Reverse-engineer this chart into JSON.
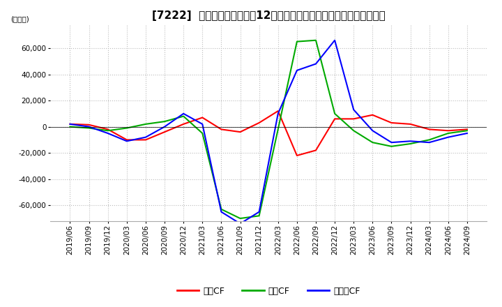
{
  "title": "[7222]  キャッシュフローの12か月移動合計の対前年同期増減額の推移",
  "ylabel": "(百万円)",
  "ylim": [
    -72000,
    78000
  ],
  "yticks": [
    -60000,
    -40000,
    -20000,
    0,
    20000,
    40000,
    60000
  ],
  "x_labels": [
    "2019/06",
    "2019/09",
    "2019/12",
    "2020/03",
    "2020/06",
    "2020/09",
    "2020/12",
    "2021/03",
    "2021/06",
    "2021/09",
    "2021/12",
    "2022/03",
    "2022/06",
    "2022/09",
    "2022/12",
    "2023/03",
    "2023/06",
    "2023/09",
    "2023/12",
    "2024/03",
    "2024/06",
    "2024/09"
  ],
  "operating_cf": [
    2000,
    1500,
    -2000,
    -10000,
    -10000,
    -4000,
    2000,
    7000,
    -2000,
    -4000,
    3000,
    12000,
    -22000,
    -18000,
    6000,
    6000,
    9000,
    3000,
    2000,
    -2000,
    -3000,
    -2000
  ],
  "investing_cf": [
    0,
    -1000,
    -3000,
    -1000,
    2000,
    4000,
    8000,
    -5000,
    -63000,
    -70000,
    -68000,
    -2000,
    65000,
    66000,
    10000,
    -3000,
    -12000,
    -15000,
    -13000,
    -10000,
    -5000,
    -3000
  ],
  "free_cf": [
    2000,
    0,
    -5000,
    -11000,
    -8000,
    0,
    10000,
    2000,
    -65000,
    -74000,
    -65000,
    10000,
    43000,
    48000,
    66000,
    13000,
    -3000,
    -12000,
    -11000,
    -12000,
    -8000,
    -5000
  ],
  "line_colors": {
    "operating": "#ff0000",
    "investing": "#00aa00",
    "free": "#0000ff"
  },
  "legend_labels": [
    "営業CF",
    "投資CF",
    "フリーCF"
  ],
  "background_color": "#ffffff",
  "grid_color": "#bbbbbb",
  "title_fontsize": 11,
  "tick_fontsize": 7.5,
  "ylabel_fontsize": 7.5
}
